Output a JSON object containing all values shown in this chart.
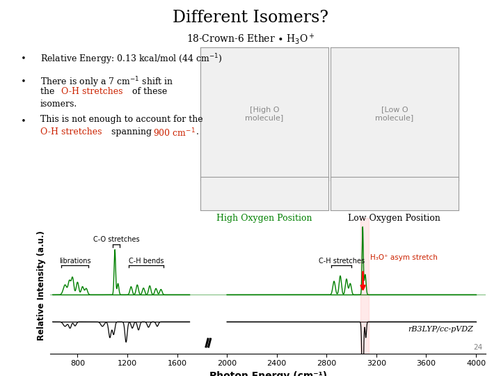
{
  "title": "Different Isomers?",
  "annotation_co": "C-O stretches",
  "annotation_lib": "librations",
  "annotation_ch_bends": "C-H bends",
  "annotation_ch_stretch": "C-H stretches",
  "annotation_h3o": "H₃O⁺ asym stretch",
  "high_oxygen_label": "High Oxygen Position",
  "low_oxygen_label": "Low Oxygen Position",
  "xlabel": "Photon Energy (cm⁻¹)",
  "ylabel": "Relative Intensity (a.u.)",
  "method_label": "rB3LYP/cc-pVDZ",
  "page_num": "24",
  "green_color": "#008000",
  "red_color": "#cc0000",
  "orange_red": "#cc2200",
  "background_color": "#ffffff"
}
